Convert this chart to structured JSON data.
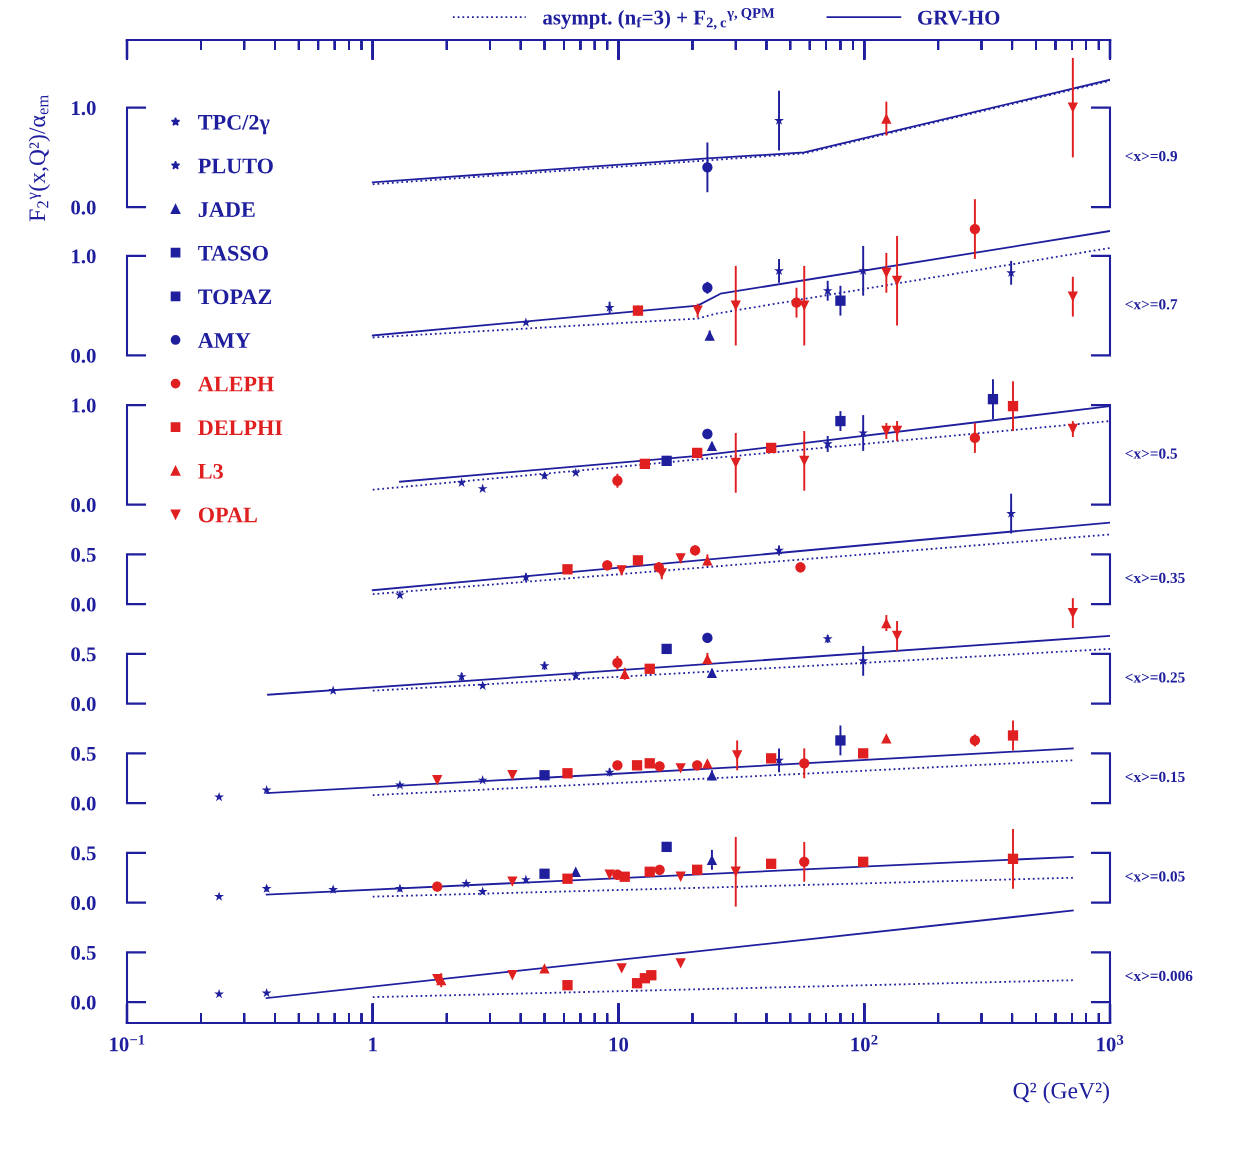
{
  "chart_data": [
    {
      "type": "scatter",
      "ylabel": "F$_{2}$$^{γ}$(x,Q²)/α$_{em}$",
      "legend": "top left",
      "log": "x",
      "tick_labels": "y",
      "xlim": [
        0.1,
        1000
      ],
      "xticks": [
        {
          "value": 0.1,
          "label": null
        },
        {
          "value": 1,
          "label": null
        },
        {
          "value": 10,
          "label": null
        },
        {
          "value": 100,
          "label": null
        },
        {
          "value": 1000,
          "label": null
        }
      ],
      "ylim": [
        -8.2,
        1.68
      ],
      "yticks": [
        {
          "value": 0,
          "label": "0.0"
        },
        {
          "value": 1,
          "label": "1.0"
        }
      ],
      "annotations": [
        "<x>=0.9"
      ],
      "series": [
        {
          "name": "TPC/2γ",
          "color": "#1f1f9e",
          "marker": "star"
        },
        {
          "name": "PLUTO",
          "color": "#1f1f9e",
          "marker": "star",
          "x": [
            45
          ],
          "values": [
            0.87
          ],
          "errors": [
            0.3
          ]
        },
        {
          "name": "JADE",
          "color": "#1f1f9e",
          "marker": "triangle"
        },
        {
          "name": "TASSO",
          "color": "#1f1f9e",
          "marker": "square"
        },
        {
          "name": "TOPAZ",
          "color": "#1f1f9e",
          "marker": "square"
        },
        {
          "name": "AMY",
          "color": "#1f1f9e",
          "marker": "circle",
          "x": [
            23
          ],
          "values": [
            0.4
          ],
          "errors": [
            0.25
          ]
        },
        {
          "name": "ALEPH",
          "color": "#e02020",
          "marker": "circle"
        },
        {
          "name": "DELPHI",
          "color": "#e02020",
          "marker": "square"
        },
        {
          "name": "L3",
          "color": "#e02020",
          "marker": "triangle",
          "x": [
            123
          ],
          "values": [
            0.89
          ],
          "errors": [
            0.17
          ]
        },
        {
          "name": "OPAL",
          "color": "#e02020",
          "marker": "triangle_down",
          "x": [
            706
          ],
          "values": [
            1.0
          ],
          "errors": [
            0.5
          ]
        },
        {
          "name": "asympt. (n$_{f}$=3) + F$_{2,c}$$^{γ,QPM}$",
          "type": "line",
          "line_style": "dotted",
          "color": "#1f1f9e",
          "x": [
            1,
            23,
            57,
            1000
          ],
          "values": [
            0.23,
            0.47,
            0.54,
            1.27
          ]
        },
        {
          "name": "GRV-HO",
          "type": "line",
          "line_style": "solid",
          "color": "#1f1f9e",
          "x": [
            1,
            23,
            57,
            1000
          ],
          "values": [
            0.25,
            0.49,
            0.55,
            1.28
          ]
        }
      ]
    },
    {
      "type": "scatter",
      "log": "x",
      "tick_labels": "y",
      "xlim": [
        0.1,
        1000
      ],
      "xticks": [
        {
          "value": 0.1,
          "label": null
        },
        {
          "value": 1,
          "label": null
        },
        {
          "value": 10,
          "label": null
        },
        {
          "value": 100,
          "label": null
        },
        {
          "value": 1000,
          "label": null
        }
      ],
      "ylim": [
        -6.71,
        3.17
      ],
      "yticks": [
        {
          "value": 0,
          "label": "0.0"
        },
        {
          "value": 1,
          "label": "1.0"
        }
      ],
      "annotations": [
        "<x>=0.7"
      ],
      "series": [
        {
          "color": "#1f1f9e",
          "marker": "star",
          "x": [
            71,
            396
          ],
          "values": [
            0.65,
            0.83
          ],
          "errors": [
            0.1,
            0.12
          ]
        },
        {
          "color": "#1f1f9e",
          "marker": "star",
          "x": [
            4.2,
            9.2,
            45,
            99
          ],
          "values": [
            0.33,
            0.48,
            0.85,
            0.85
          ],
          "errors": [
            null,
            0.06,
            0.12,
            0.25
          ]
        },
        {
          "color": "#1f1f9e",
          "marker": "triangle",
          "x": [
            23.5
          ],
          "values": [
            0.2
          ],
          "errors": [
            0.05
          ]
        },
        {
          "color": "#1f1f9e",
          "marker": "square",
          "x": [
            80
          ],
          "values": [
            0.55
          ],
          "errors": [
            0.15
          ]
        },
        {
          "color": "#1f1f9e",
          "marker": "circle",
          "x": [
            23
          ],
          "values": [
            0.68
          ],
          "errors": [
            0.06
          ]
        },
        {
          "color": "#e02020",
          "marker": "circle",
          "x": [
            53,
            282
          ],
          "values": [
            0.53,
            1.27
          ],
          "errors": [
            0.15,
            0.3
          ]
        },
        {
          "color": "#e02020",
          "marker": "square",
          "x": [
            12
          ],
          "values": [
            0.45
          ],
          "errors": [
            0.05
          ]
        },
        {
          "color": "#e02020",
          "marker": "triangle_down",
          "x": [
            21,
            30,
            57,
            123,
            136,
            706
          ],
          "values": [
            0.45,
            0.5,
            0.5,
            0.83,
            0.75,
            0.59
          ],
          "errors": [
            0.07,
            0.4,
            0.4,
            0.2,
            0.45,
            0.2
          ]
        },
        {
          "type": "line",
          "line_style": "dotted",
          "color": "#1f1f9e",
          "x": [
            1,
            21,
            25,
            1000
          ],
          "values": [
            0.18,
            0.37,
            0.42,
            1.08
          ]
        },
        {
          "type": "line",
          "line_style": "solid",
          "color": "#1f1f9e",
          "x": [
            1,
            21,
            26,
            1000
          ],
          "values": [
            0.2,
            0.5,
            0.62,
            1.25
          ]
        }
      ]
    },
    {
      "type": "scatter",
      "log": "x",
      "tick_labels": "y",
      "xlim": [
        0.1,
        1000
      ],
      "xticks": [
        {
          "value": 0.1,
          "label": null
        },
        {
          "value": 1,
          "label": null
        },
        {
          "value": 10,
          "label": null
        },
        {
          "value": 100,
          "label": null
        },
        {
          "value": 1000,
          "label": null
        }
      ],
      "ylim": [
        -5.21,
        4.67
      ],
      "yticks": [
        {
          "value": 0,
          "label": "0.0"
        },
        {
          "value": 1,
          "label": "1.0"
        }
      ],
      "annotations": [
        "<x>=0.5"
      ],
      "series": [
        {
          "color": "#1f1f9e",
          "marker": "star",
          "x": [
            6.7,
            71
          ],
          "values": [
            0.32,
            0.61
          ],
          "errors": [
            null,
            0.08
          ]
        },
        {
          "color": "#1f1f9e",
          "marker": "star",
          "x": [
            2.3,
            2.8,
            5.0,
            99
          ],
          "values": [
            0.22,
            0.16,
            0.29,
            0.72
          ],
          "errors": [
            null,
            null,
            0.03,
            0.18
          ]
        },
        {
          "color": "#1f1f9e",
          "marker": "triangle",
          "x": [
            24
          ],
          "values": [
            0.59
          ],
          "errors": [
            0.04
          ]
        },
        {
          "color": "#1f1f9e",
          "marker": "square",
          "x": [
            15.7,
            80
          ],
          "values": [
            0.44,
            0.84
          ],
          "errors": [
            0.05,
            0.1
          ]
        },
        {
          "color": "#1f1f9e",
          "marker": "square",
          "x": [
            334
          ],
          "values": [
            1.06
          ],
          "errors": [
            0.2
          ]
        },
        {
          "color": "#1f1f9e",
          "marker": "circle",
          "x": [
            23
          ],
          "values": [
            0.71
          ],
          "errors": [
            0.04
          ]
        },
        {
          "color": "#e02020",
          "marker": "circle",
          "x": [
            9.9,
            282
          ],
          "values": [
            0.24,
            0.67
          ],
          "errors": [
            0.07,
            0.15
          ]
        },
        {
          "color": "#e02020",
          "marker": "square",
          "x": [
            12.8,
            20.9,
            41.8,
            403
          ],
          "values": [
            0.41,
            0.52,
            0.57,
            0.99
          ],
          "errors": [
            null,
            null,
            null,
            0.25
          ]
        },
        {
          "color": "#e02020",
          "marker": "triangle_down",
          "x": [
            30,
            57,
            123,
            136,
            706
          ],
          "values": [
            0.42,
            0.44,
            0.74,
            0.74,
            0.76
          ],
          "errors": [
            0.3,
            0.3,
            0.08,
            0.1,
            0.08
          ]
        },
        {
          "type": "line",
          "line_style": "dotted",
          "color": "#1f1f9e",
          "x": [
            1,
            1000
          ],
          "values": [
            0.15,
            0.84
          ]
        },
        {
          "type": "line",
          "line_style": "solid",
          "color": "#1f1f9e",
          "x": [
            1.29,
            21,
            1000
          ],
          "values": [
            0.23,
            0.49,
            0.99
          ]
        }
      ]
    },
    {
      "type": "scatter",
      "log": "x",
      "tick_labels": "y",
      "xlim": [
        0.1,
        1000
      ],
      "xticks": [
        {
          "value": 0.1,
          "label": null
        },
        {
          "value": 1,
          "label": null
        },
        {
          "value": 10,
          "label": null
        },
        {
          "value": 100,
          "label": null
        },
        {
          "value": 1000,
          "label": null
        }
      ],
      "ylim": [
        -4.21,
        5.67
      ],
      "yticks": [
        {
          "value": 0,
          "label": "0.0"
        },
        {
          "value": 0.5,
          "label": "0.5"
        }
      ],
      "annotations": [
        "<x>=0.35"
      ],
      "series": [
        {
          "color": "#1f1f9e",
          "marker": "star",
          "x": [
            396
          ],
          "values": [
            0.91
          ],
          "errors": [
            0.2
          ]
        },
        {
          "color": "#1f1f9e",
          "marker": "star",
          "x": [
            1.29,
            4.2,
            45
          ],
          "values": [
            0.09,
            0.27,
            0.54
          ],
          "errors": [
            null,
            0.04,
            0.05
          ]
        },
        {
          "color": "#e02020",
          "marker": "circle",
          "x": [
            9.0,
            14.6,
            20.5,
            55
          ],
          "values": [
            0.39,
            0.37,
            0.54,
            0.37
          ],
          "errors": [
            0.05,
            0.05,
            0.05,
            0.05
          ]
        },
        {
          "color": "#e02020",
          "marker": "square",
          "x": [
            6.2,
            12
          ],
          "values": [
            0.35,
            0.44
          ],
          "errors": [
            null,
            null
          ]
        },
        {
          "color": "#e02020",
          "marker": "triangle",
          "x": [
            23
          ],
          "values": [
            0.44
          ],
          "errors": [
            0.06
          ]
        },
        {
          "color": "#e02020",
          "marker": "triangle_down",
          "x": [
            10.3,
            15,
            17.9
          ],
          "values": [
            0.34,
            0.31,
            0.46
          ],
          "errors": [
            0.05,
            0.06,
            0.05
          ]
        },
        {
          "type": "line",
          "line_style": "dotted",
          "color": "#1f1f9e",
          "x": [
            1,
            1000
          ],
          "values": [
            0.1,
            0.7
          ]
        },
        {
          "type": "line",
          "line_style": "solid",
          "color": "#1f1f9e",
          "x": [
            1,
            1000
          ],
          "values": [
            0.14,
            0.82
          ]
        }
      ]
    },
    {
      "type": "scatter",
      "log": "x",
      "tick_labels": "y",
      "xlim": [
        0.1,
        1000
      ],
      "xticks": [
        {
          "value": 0.1,
          "label": null
        },
        {
          "value": 1,
          "label": null
        },
        {
          "value": 10,
          "label": null
        },
        {
          "value": 100,
          "label": null
        },
        {
          "value": 1000,
          "label": null
        }
      ],
      "ylim": [
        -3.21,
        6.67
      ],
      "yticks": [
        {
          "value": 0,
          "label": "0.0"
        },
        {
          "value": 0.5,
          "label": "0.5"
        }
      ],
      "annotations": [
        "<x>=0.25"
      ],
      "series": [
        {
          "color": "#1f1f9e",
          "marker": "star",
          "x": [
            0.69,
            2.8,
            71
          ],
          "values": [
            0.13,
            0.18,
            0.65
          ],
          "errors": [
            null,
            null,
            0.04
          ]
        },
        {
          "color": "#1f1f9e",
          "marker": "star",
          "x": [
            2.3,
            5.0,
            6.7,
            99
          ],
          "values": [
            0.27,
            0.38,
            0.28,
            0.43
          ],
          "errors": [
            0.04,
            0.04,
            0.03,
            0.15
          ]
        },
        {
          "color": "#1f1f9e",
          "marker": "triangle",
          "x": [
            24
          ],
          "values": [
            0.31
          ],
          "errors": [
            0.04
          ]
        },
        {
          "color": "#1f1f9e",
          "marker": "square",
          "x": [
            15.7
          ],
          "values": [
            0.55
          ],
          "errors": [
            0.04
          ]
        },
        {
          "color": "#1f1f9e",
          "marker": "circle",
          "x": [
            23
          ],
          "values": [
            0.66
          ],
          "errors": [
            0.05
          ]
        },
        {
          "color": "#e02020",
          "marker": "circle",
          "x": [
            9.9
          ],
          "values": [
            0.41
          ],
          "errors": [
            0.07
          ]
        },
        {
          "color": "#e02020",
          "marker": "square",
          "x": [
            13.4
          ],
          "values": [
            0.35
          ],
          "errors": [
            null
          ]
        },
        {
          "color": "#e02020",
          "marker": "triangle",
          "x": [
            10.6,
            23,
            123
          ],
          "values": [
            0.3,
            0.45,
            0.81
          ],
          "errors": [
            0.06,
            0.06,
            0.08
          ]
        },
        {
          "color": "#e02020",
          "marker": "triangle_down",
          "x": [
            136,
            706
          ],
          "values": [
            0.68,
            0.91
          ],
          "errors": [
            0.15,
            0.15
          ]
        },
        {
          "type": "line",
          "line_style": "dotted",
          "color": "#1f1f9e",
          "x": [
            1,
            1000
          ],
          "values": [
            0.13,
            0.55
          ]
        },
        {
          "type": "line",
          "line_style": "solid",
          "color": "#1f1f9e",
          "x": [
            0.375,
            1000
          ],
          "values": [
            0.09,
            0.68
          ]
        }
      ]
    },
    {
      "type": "scatter",
      "log": "x",
      "tick_labels": "y",
      "xlim": [
        0.1,
        1000
      ],
      "xticks": [
        {
          "value": 0.1,
          "label": null
        },
        {
          "value": 1,
          "label": null
        },
        {
          "value": 10,
          "label": null
        },
        {
          "value": 100,
          "label": null
        },
        {
          "value": 1000,
          "label": null
        }
      ],
      "ylim": [
        -2.21,
        7.67
      ],
      "yticks": [
        {
          "value": 0,
          "label": "0.0"
        },
        {
          "value": 0.5,
          "label": "0.5"
        }
      ],
      "annotations": [
        "<x>=0.15"
      ],
      "series": [
        {
          "color": "#1f1f9e",
          "marker": "star",
          "x": [
            0.237
          ],
          "values": [
            0.06
          ],
          "errors": [
            null
          ]
        },
        {
          "color": "#1f1f9e",
          "marker": "star",
          "x": [
            0.37,
            1.29,
            2.8,
            9.2,
            45
          ],
          "values": [
            0.13,
            0.18,
            0.23,
            0.31,
            0.43
          ],
          "errors": [
            null,
            null,
            null,
            0.04,
            0.12
          ]
        },
        {
          "color": "#1f1f9e",
          "marker": "triangle",
          "x": [
            24
          ],
          "values": [
            0.28
          ],
          "errors": [
            0.05
          ]
        },
        {
          "color": "#1f1f9e",
          "marker": "square",
          "x": [
            5.0,
            80
          ],
          "values": [
            0.28,
            0.63
          ],
          "errors": [
            null,
            0.15
          ]
        },
        {
          "color": "#e02020",
          "marker": "circle",
          "x": [
            9.9,
            14.7,
            20.9,
            57,
            282
          ],
          "values": [
            0.38,
            0.37,
            0.38,
            0.4,
            0.63
          ],
          "errors": [
            0.04,
            0.04,
            0.04,
            0.15,
            0.06
          ]
        },
        {
          "color": "#e02020",
          "marker": "square",
          "x": [
            6.2,
            11.9,
            13.4,
            41.8,
            99,
            403
          ],
          "values": [
            0.3,
            0.38,
            0.4,
            0.45,
            0.5,
            0.68
          ],
          "errors": [
            null,
            null,
            null,
            null,
            null,
            0.15
          ]
        },
        {
          "color": "#e02020",
          "marker": "triangle",
          "x": [
            23,
            123
          ],
          "values": [
            0.4,
            0.65
          ],
          "errors": [
            null,
            null
          ]
        },
        {
          "color": "#e02020",
          "marker": "triangle_down",
          "x": [
            1.83,
            3.7,
            17.9,
            30.4
          ],
          "values": [
            0.23,
            0.28,
            0.35,
            0.48
          ],
          "errors": [
            null,
            null,
            null,
            0.15
          ]
        },
        {
          "type": "line",
          "line_style": "dotted",
          "color": "#1f1f9e",
          "x": [
            1,
            706
          ],
          "values": [
            0.08,
            0.43
          ]
        },
        {
          "type": "line",
          "line_style": "solid",
          "color": "#1f1f9e",
          "x": [
            0.37,
            706
          ],
          "values": [
            0.1,
            0.55
          ]
        }
      ]
    },
    {
      "type": "scatter",
      "log": "x",
      "tick_labels": "y",
      "xlim": [
        0.1,
        1000
      ],
      "xticks": [
        {
          "value": 0.1,
          "label": null
        },
        {
          "value": 1,
          "label": null
        },
        {
          "value": 10,
          "label": null
        },
        {
          "value": 100,
          "label": null
        },
        {
          "value": 1000,
          "label": null
        }
      ],
      "ylim": [
        -1.21,
        8.67
      ],
      "yticks": [
        {
          "value": 0,
          "label": "0.0"
        },
        {
          "value": 0.5,
          "label": "0.5"
        }
      ],
      "annotations": [
        "<x>=0.05"
      ],
      "series": [
        {
          "color": "#1f1f9e",
          "marker": "star",
          "x": [
            0.237,
            2.8
          ],
          "values": [
            0.06,
            0.11
          ],
          "errors": [
            null,
            null
          ]
        },
        {
          "color": "#1f1f9e",
          "marker": "star",
          "x": [
            0.37,
            0.69,
            1.29,
            2.4,
            4.2
          ],
          "values": [
            0.14,
            0.13,
            0.14,
            0.19,
            0.23
          ],
          "errors": [
            0.03,
            0.03,
            0.03,
            null,
            null
          ]
        },
        {
          "color": "#1f1f9e",
          "marker": "triangle",
          "x": [
            6.7,
            24
          ],
          "values": [
            0.31,
            0.43
          ],
          "errors": [
            null,
            0.1
          ]
        },
        {
          "color": "#1f1f9e",
          "marker": "square",
          "x": [
            5.0,
            15.7
          ],
          "values": [
            0.29,
            0.56
          ],
          "errors": [
            null,
            0.05
          ]
        },
        {
          "color": "#e02020",
          "marker": "circle",
          "x": [
            1.83,
            9.9,
            14.7,
            57
          ],
          "values": [
            0.16,
            0.28,
            0.33,
            0.41
          ],
          "errors": [
            0.04,
            null,
            null,
            0.2
          ]
        },
        {
          "color": "#e02020",
          "marker": "square",
          "x": [
            6.2,
            10.6,
            13.4,
            20.9,
            41.8,
            99,
            403
          ],
          "values": [
            0.24,
            0.26,
            0.31,
            0.33,
            0.39,
            0.41,
            0.44
          ],
          "errors": [
            null,
            null,
            null,
            null,
            null,
            null,
            0.3
          ]
        },
        {
          "color": "#e02020",
          "marker": "triangle_down",
          "x": [
            3.7,
            9.2,
            17.9,
            30
          ],
          "values": [
            0.21,
            0.28,
            0.26,
            0.31
          ],
          "errors": [
            null,
            null,
            null,
            0.35
          ]
        },
        {
          "type": "line",
          "line_style": "dotted",
          "color": "#1f1f9e",
          "x": [
            1,
            706
          ],
          "values": [
            0.06,
            0.25
          ]
        },
        {
          "type": "line",
          "line_style": "solid",
          "color": "#1f1f9e",
          "x": [
            0.37,
            706
          ],
          "values": [
            0.08,
            0.46
          ]
        }
      ]
    },
    {
      "type": "scatter",
      "xlabel": "Q² (GeV²)",
      "log": "x",
      "xlim": [
        0.1,
        1000
      ],
      "xticks": [
        {
          "value": 0.1,
          "label": "10$^{−1}$"
        },
        {
          "value": 1,
          "label": "1"
        },
        {
          "value": 10,
          "label": "10"
        },
        {
          "value": 100,
          "label": "10$^{2}$"
        },
        {
          "value": 1000,
          "label": "10$^{3}$"
        }
      ],
      "ylim": [
        -0.21,
        9.67
      ],
      "yticks": [
        {
          "value": 0,
          "label": "0.0"
        },
        {
          "value": 0.5,
          "label": "0.5"
        }
      ],
      "annotations": [
        "<x>=0.006"
      ],
      "series": [
        {
          "color": "#1f1f9e",
          "marker": "star",
          "x": [
            0.237
          ],
          "values": [
            0.08
          ],
          "errors": [
            null
          ]
        },
        {
          "color": "#1f1f9e",
          "marker": "star",
          "x": [
            0.37
          ],
          "values": [
            0.09
          ],
          "errors": [
            null
          ]
        },
        {
          "color": "#e02020",
          "marker": "square",
          "x": [
            6.2,
            11.9,
            12.8,
            13.6
          ],
          "values": [
            0.17,
            0.19,
            0.24,
            0.27
          ],
          "errors": [
            null,
            null,
            null,
            null
          ]
        },
        {
          "color": "#e02020",
          "marker": "triangle",
          "x": [
            1.9,
            5.0
          ],
          "values": [
            0.22,
            0.34
          ],
          "errors": [
            0.07,
            null
          ]
        },
        {
          "color": "#e02020",
          "marker": "triangle_down",
          "x": [
            1.83,
            3.7,
            10.3,
            17.9
          ],
          "values": [
            0.23,
            0.27,
            0.34,
            0.39
          ],
          "errors": [
            null,
            null,
            null,
            null
          ]
        },
        {
          "type": "line",
          "line_style": "dotted",
          "color": "#1f1f9e",
          "x": [
            1,
            706
          ],
          "values": [
            0.05,
            0.22
          ]
        },
        {
          "type": "line",
          "line_style": "solid",
          "color": "#1f1f9e",
          "x": [
            0.37,
            706
          ],
          "values": [
            0.04,
            0.92
          ]
        }
      ]
    }
  ]
}
